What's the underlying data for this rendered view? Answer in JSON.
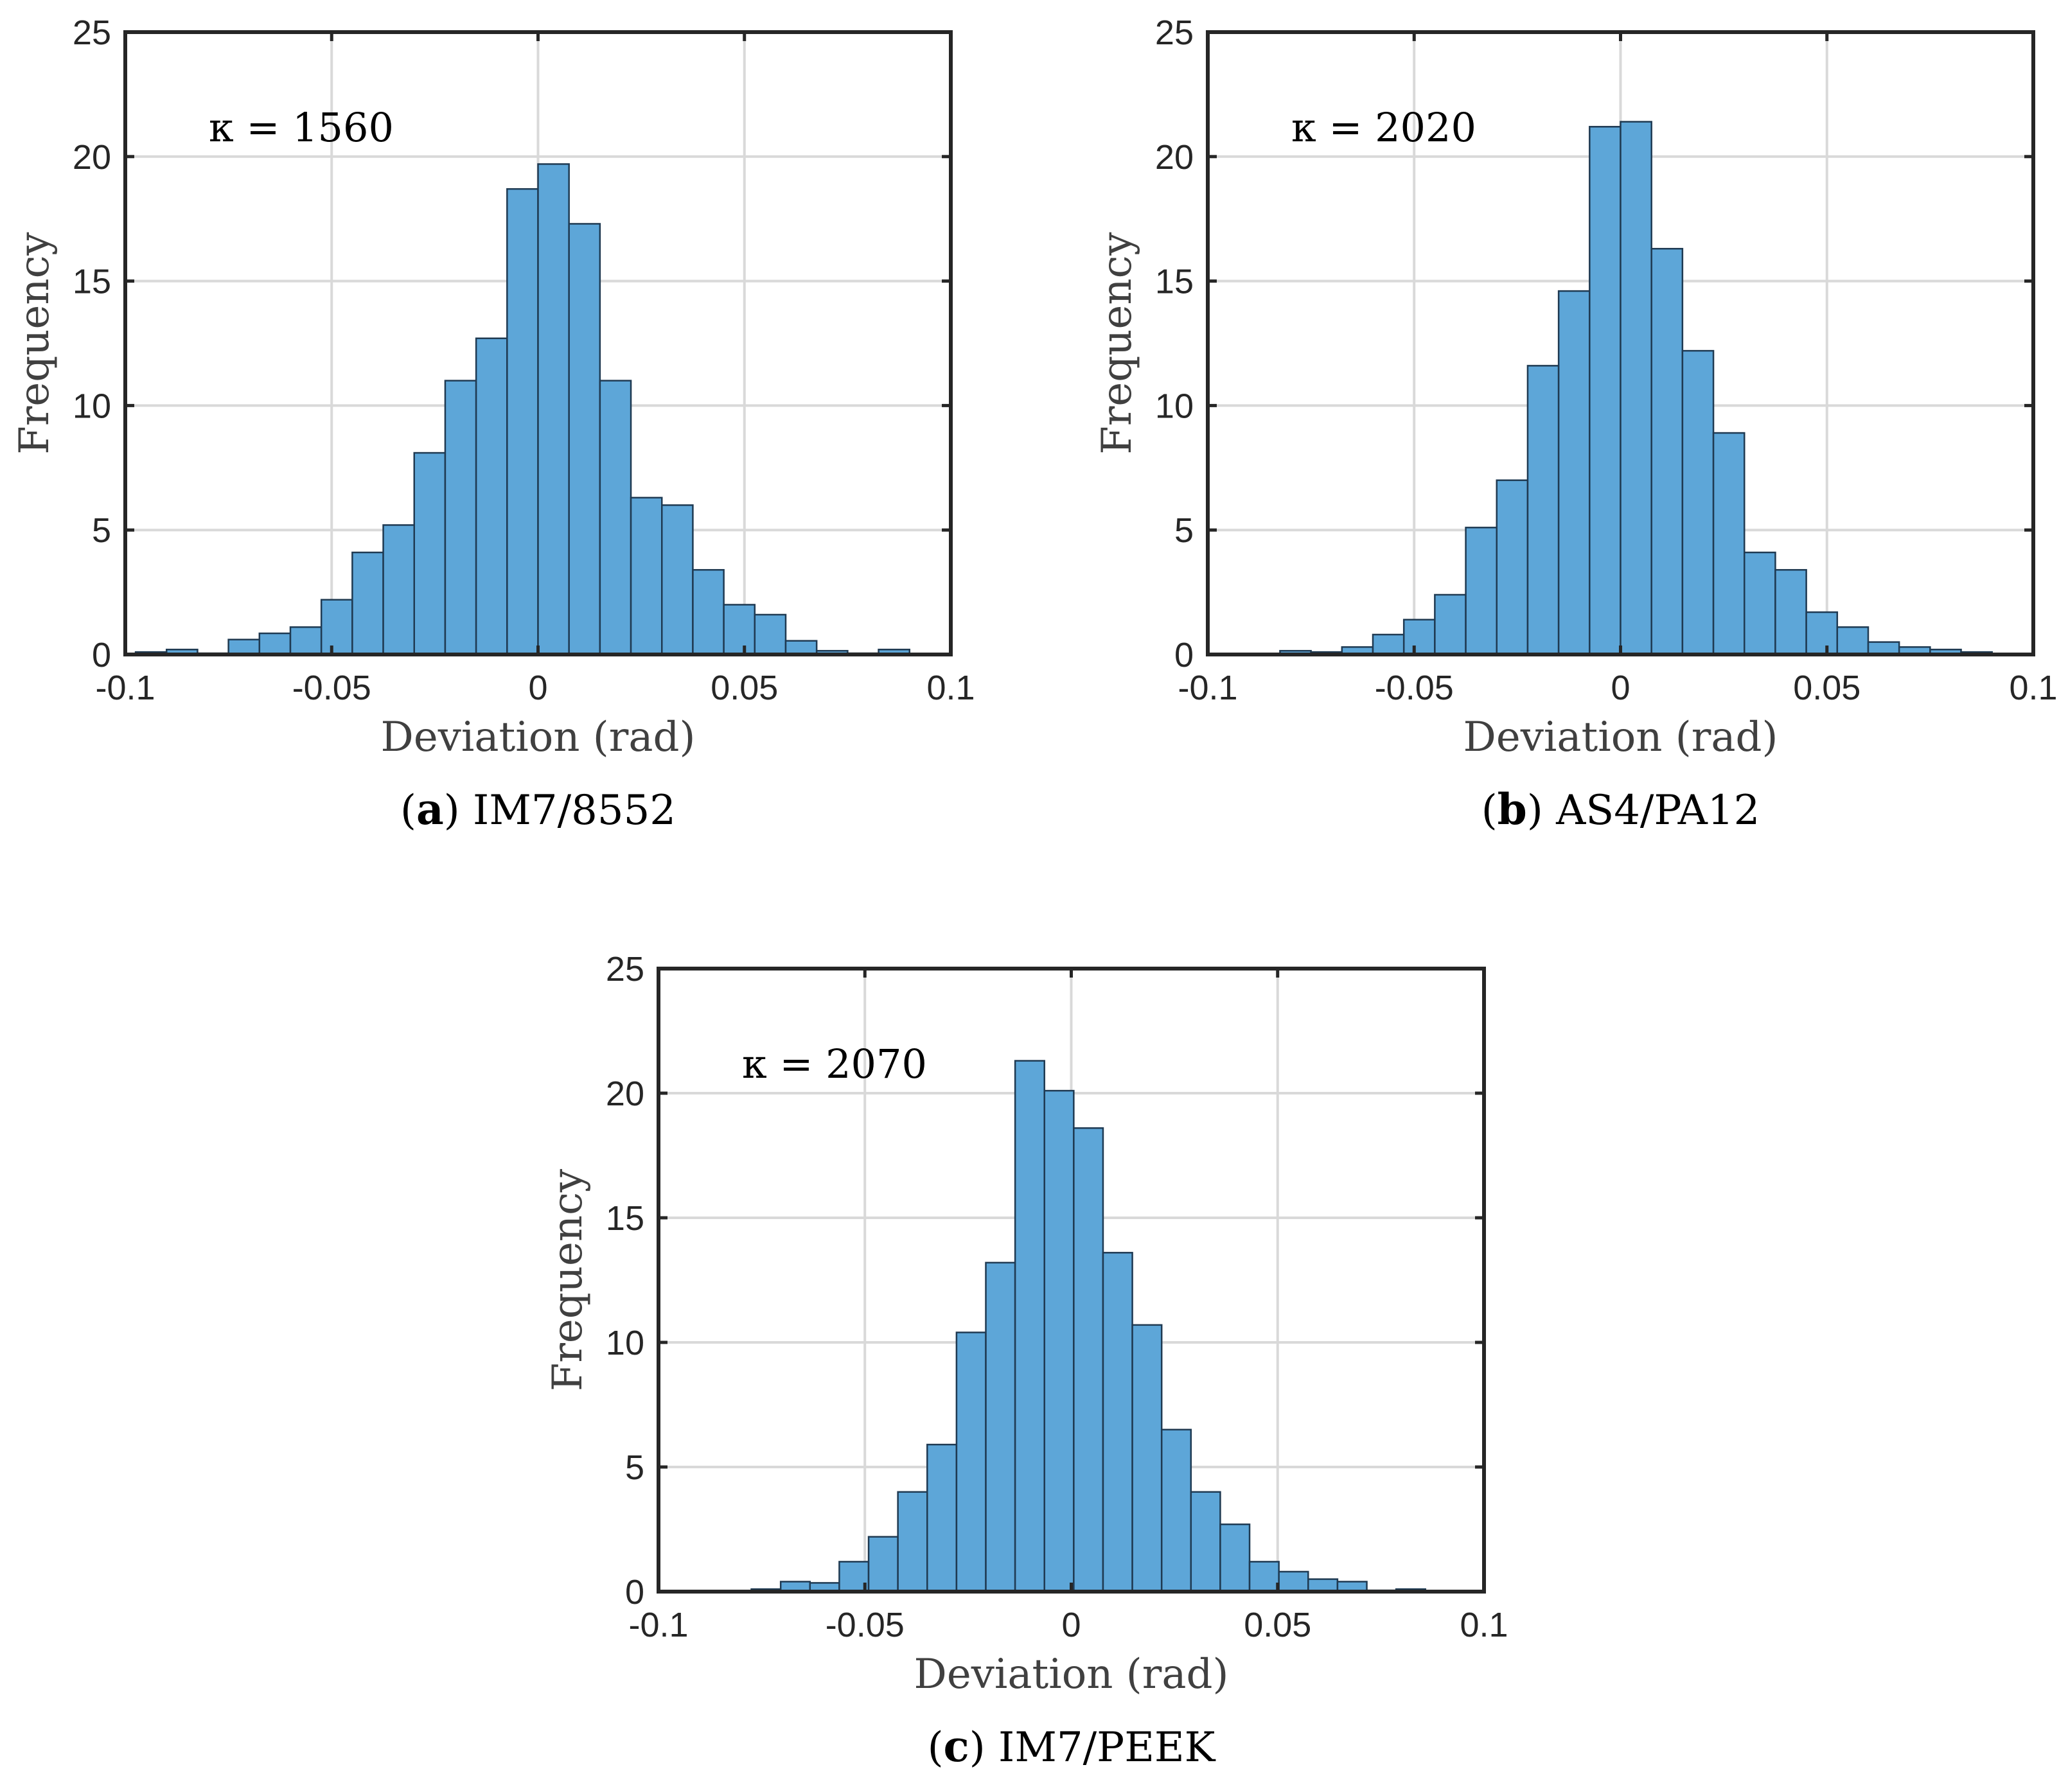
{
  "chart_data": [
    {
      "type": "bar",
      "panel_letter": "a",
      "caption_text": "IM7/8552",
      "annotation": "κ = 1560",
      "xlabel": "Deviation (rad)",
      "ylabel": "Frequency",
      "xlim": [
        -0.1,
        0.1
      ],
      "ylim": [
        0,
        25
      ],
      "xticks": [
        -0.1,
        -0.05,
        0,
        0.05,
        0.1
      ],
      "xtick_labels": [
        "-0.1",
        "-0.05",
        "0",
        "0.05",
        "0.1"
      ],
      "yticks": [
        0,
        5,
        10,
        15,
        20,
        25
      ],
      "ytick_labels": [
        "0",
        "5",
        "10",
        "15",
        "20",
        "25"
      ],
      "grid": true,
      "bar_color": "#5da6d8",
      "bin_edges_start": -0.0975,
      "bin_width": 0.0075,
      "values": [
        0.1,
        0.2,
        0.05,
        0.6,
        0.85,
        1.1,
        2.2,
        4.1,
        5.2,
        8.1,
        11.0,
        12.7,
        18.7,
        19.7,
        17.3,
        11.0,
        6.3,
        6.0,
        3.4,
        2.0,
        1.6,
        0.55,
        0.15,
        0.05,
        0.2
      ]
    },
    {
      "type": "bar",
      "panel_letter": "b",
      "caption_text": "AS4/PA12",
      "annotation": "κ = 2020",
      "xlabel": "Deviation (rad)",
      "ylabel": "Frequency",
      "xlim": [
        -0.1,
        0.1
      ],
      "ylim": [
        0,
        25
      ],
      "xticks": [
        -0.1,
        -0.05,
        0,
        0.05,
        0.1
      ],
      "xtick_labels": [
        "-0.1",
        "-0.05",
        "0",
        "0.05",
        "0.1"
      ],
      "yticks": [
        0,
        5,
        10,
        15,
        20,
        25
      ],
      "ytick_labels": [
        "0",
        "5",
        "10",
        "15",
        "20",
        "25"
      ],
      "grid": true,
      "bar_color": "#5da6d8",
      "bin_edges_start": -0.0825,
      "bin_width": 0.0075,
      "values": [
        0.15,
        0.1,
        0.3,
        0.8,
        1.4,
        2.4,
        5.1,
        7.0,
        11.6,
        14.6,
        21.2,
        21.4,
        16.3,
        12.2,
        8.9,
        4.1,
        3.4,
        1.7,
        1.1,
        0.5,
        0.3,
        0.2,
        0.1
      ]
    },
    {
      "type": "bar",
      "panel_letter": "c",
      "caption_text": "IM7/PEEK",
      "annotation": "κ = 2070",
      "xlabel": "Deviation (rad)",
      "ylabel": "Frequency",
      "xlim": [
        -0.1,
        0.1
      ],
      "ylim": [
        0,
        25
      ],
      "xticks": [
        -0.1,
        -0.05,
        0,
        0.05,
        0.1
      ],
      "xtick_labels": [
        "-0.1",
        "-0.05",
        "0",
        "0.05",
        "0.1"
      ],
      "yticks": [
        0,
        5,
        10,
        15,
        20,
        25
      ],
      "ytick_labels": [
        "0",
        "5",
        "10",
        "15",
        "20",
        "25"
      ],
      "grid": true,
      "bar_color": "#5da6d8",
      "bin_edges_start": -0.0775,
      "bin_width": 0.0071,
      "values": [
        0.1,
        0.4,
        0.35,
        1.2,
        2.2,
        4.0,
        5.9,
        10.4,
        13.2,
        21.3,
        20.1,
        18.6,
        13.6,
        10.7,
        6.5,
        4.0,
        2.7,
        1.2,
        0.8,
        0.5,
        0.4,
        0.05,
        0.1
      ]
    }
  ]
}
